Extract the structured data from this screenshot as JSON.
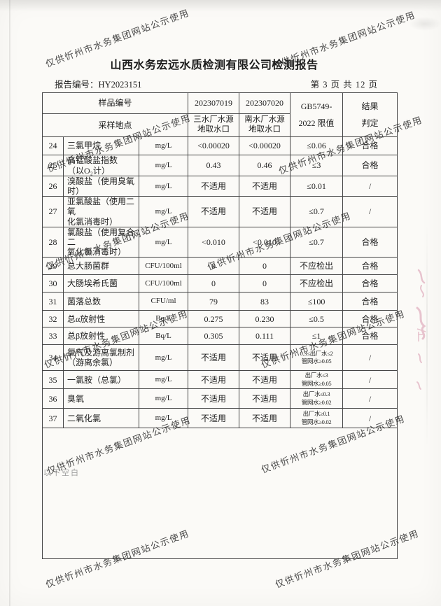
{
  "page": {
    "title": "山西水务宏远水质检测有限公司检测报告",
    "report_no_label": "报告编号：",
    "report_no": "HY2023151",
    "page_info": "第 3 页 共 12 页",
    "below_blank_note": "以下空白",
    "watermark_text": "仅供忻州市水务集团网站公示使用"
  },
  "colors": {
    "seal_pink": "#d897ad",
    "table_border": "#454545"
  },
  "table": {
    "header": {
      "row1_label": "样品编号",
      "row2_label": "采样地点",
      "sample1_no": "202307019",
      "sample2_no": "202307020",
      "sample1_site": "三水厂水源\n地取水口",
      "sample2_site": "南水厂水源\n地取水口",
      "limit_line1": "GB5749-",
      "limit_line2": "2022 限值",
      "result_line1": "结果",
      "result_line2": "判定"
    },
    "rows": [
      {
        "no": "24",
        "name": "三氯甲烷",
        "unit": "mg/L",
        "v1": "<0.00020",
        "v2": "<0.00020",
        "limit": "≤0.06",
        "result": "合格"
      },
      {
        "no": "25",
        "name": "高锰酸盐指数\n（以O₂计）",
        "unit": "mg/L",
        "v1": "0.43",
        "v2": "0.46",
        "limit": "≤3",
        "result": "合格"
      },
      {
        "no": "26",
        "name": "溴酸盐（使用臭氧\n时）",
        "unit": "mg/L",
        "v1": "不适用",
        "v2": "不适用",
        "limit": "≤0.01",
        "result": "/"
      },
      {
        "no": "27",
        "name": "亚氯酸盐（使用二氧\n化氯消毒时）",
        "unit": "mg/L",
        "v1": "不适用",
        "v2": "不适用",
        "limit": "≤0.7",
        "result": "/"
      },
      {
        "no": "28",
        "name": "氯酸盐（使用复合二\n氧化氯消毒时）",
        "unit": "mg/L",
        "v1": "<0.010",
        "v2": "<0.010",
        "limit": "≤0.7",
        "result": "合格"
      },
      {
        "no": "29",
        "name": "总大肠菌群",
        "unit": "CFU/100ml",
        "v1": "0",
        "v2": "0",
        "limit": "不应检出",
        "result": "合格"
      },
      {
        "no": "30",
        "name": "大肠埃希氏菌",
        "unit": "CFU/100ml",
        "v1": "0",
        "v2": "0",
        "limit": "不应检出",
        "result": "合格"
      },
      {
        "no": "31",
        "name": "菌落总数",
        "unit": "CFU/ml",
        "v1": "79",
        "v2": "83",
        "limit": "≤100",
        "result": "合格"
      },
      {
        "no": "32",
        "name": "总α放射性",
        "unit": "Bq/L",
        "v1": "0.275",
        "v2": "0.230",
        "limit": "≤0.5",
        "result": "合格"
      },
      {
        "no": "33",
        "name": "总β放射性",
        "unit": "Bq/L",
        "v1": "0.305",
        "v2": "0.111",
        "limit": "≤1",
        "result": "合格"
      },
      {
        "no": "34",
        "name": "氯气及游离氯制剂\n（游离余氯）",
        "unit": "mg/L",
        "v1": "不适用",
        "v2": "不适用",
        "limit": "0.3≤出厂水≤2\n管网水≥0.05",
        "result": "/"
      },
      {
        "no": "35",
        "name": "一氯胺（总氯）",
        "unit": "mg/L",
        "v1": "不适用",
        "v2": "不适用",
        "limit": "出厂水≤3\n管网水≥0.05",
        "result": "/"
      },
      {
        "no": "36",
        "name": "臭氧",
        "unit": "mg/L",
        "v1": "不适用",
        "v2": "不适用",
        "limit": "出厂水≤0.3\n管网水≥0.02",
        "result": "/"
      },
      {
        "no": "37",
        "name": "二氧化氯",
        "unit": "mg/L",
        "v1": "不适用",
        "v2": "不适用",
        "limit": "出厂水≥0.1\n管网水≥0.02",
        "result": "/"
      }
    ]
  }
}
